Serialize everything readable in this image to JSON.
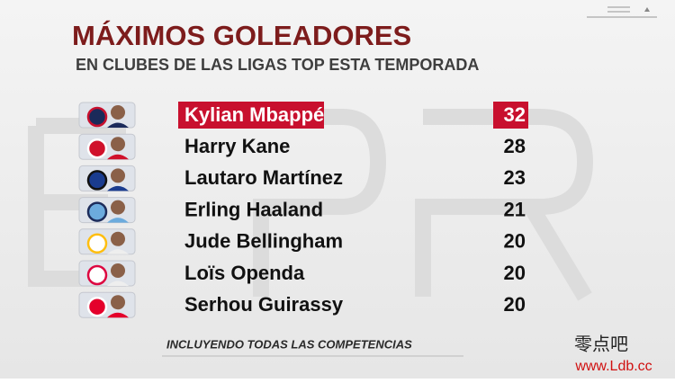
{
  "header": {
    "title": "MÁXIMOS GOLEADORES",
    "subtitle": "EN CLUBES DE LAS LIGAS TOP ESTA TEMPORADA"
  },
  "table": {
    "rows": [
      {
        "name": "Kylian Mbappé",
        "goals": "32"
      },
      {
        "name": "Harry Kane",
        "goals": "28"
      },
      {
        "name": "Lautaro Martínez",
        "goals": "23"
      },
      {
        "name": "Erling Haaland",
        "goals": "21"
      },
      {
        "name": "Jude Bellingham",
        "goals": "20"
      },
      {
        "name": "Loïs Openda",
        "goals": "20"
      },
      {
        "name": "Serhou Guirassy",
        "goals": "20"
      }
    ]
  },
  "footer": {
    "note": "INCLUYENDO TODAS LAS COMPETENCIAS"
  },
  "watermark": {
    "line1": "零点吧",
    "line2": "www.Ldb.cc"
  }
}
